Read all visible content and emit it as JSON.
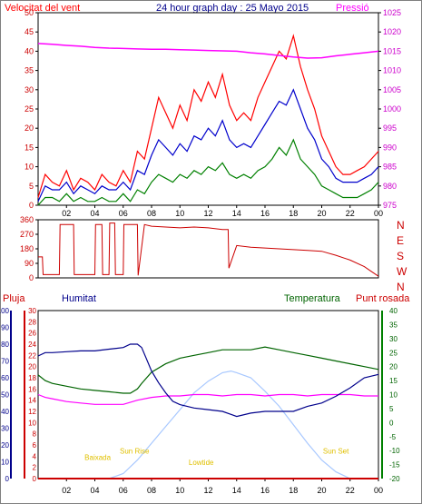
{
  "colors": {
    "wind_speed": "#ff0000",
    "wind_avg": "#0000cc",
    "wind_min": "#008000",
    "pressure": "#ff00ff",
    "direction": "#cc0000",
    "rain": "#cc0000",
    "humidity": "#00008b",
    "temperature": "#006400",
    "dew_point": "#ff00ff",
    "solar": "#a8c8ff",
    "sun_markers": "#e0c000"
  },
  "chart_data": [
    {
      "type": "line",
      "title": "24 hour graph day : 25 Mayo 2015",
      "left_label": "Velocitat del vent",
      "right_label": "Pressió",
      "x_ticks": [
        "02",
        "04",
        "06",
        "08",
        "10",
        "12",
        "14",
        "16",
        "18",
        "20",
        "22",
        "00"
      ],
      "x_range": [
        0,
        24
      ],
      "y_left_range": [
        0,
        50
      ],
      "y_left_ticks": [
        "0",
        "5",
        "10",
        "15",
        "20",
        "25",
        "30",
        "35",
        "40",
        "45",
        "50"
      ],
      "y_right_range": [
        975,
        1025
      ],
      "y_right_ticks": [
        "975",
        "980",
        "985",
        "990",
        "995",
        "1000",
        "1005",
        "1010",
        "1015",
        "1020",
        "1025"
      ],
      "series": [
        {
          "key": "wind_speed",
          "axis": "left",
          "x": [
            0,
            0.5,
            1,
            1.5,
            2,
            2.5,
            3,
            3.5,
            4,
            4.5,
            5,
            5.5,
            6,
            6.5,
            7,
            7.5,
            8,
            8.5,
            9,
            9.5,
            10,
            10.5,
            11,
            11.5,
            12,
            12.5,
            13,
            13.5,
            14,
            14.5,
            15,
            15.5,
            16,
            16.5,
            17,
            17.5,
            18,
            18.5,
            19,
            19.5,
            20,
            20.5,
            21,
            21.5,
            22,
            22.5,
            23,
            23.5,
            24
          ],
          "y": [
            2,
            8,
            6,
            5,
            9,
            4,
            7,
            6,
            4,
            8,
            6,
            5,
            9,
            6,
            14,
            12,
            20,
            28,
            24,
            20,
            26,
            22,
            30,
            27,
            32,
            28,
            34,
            26,
            22,
            24,
            22,
            28,
            32,
            36,
            40,
            38,
            44,
            36,
            30,
            25,
            18,
            14,
            10,
            8,
            8,
            9,
            10,
            12,
            14
          ]
        },
        {
          "key": "wind_avg",
          "axis": "left",
          "x": [
            0,
            0.5,
            1,
            1.5,
            2,
            2.5,
            3,
            3.5,
            4,
            4.5,
            5,
            5.5,
            6,
            6.5,
            7,
            7.5,
            8,
            8.5,
            9,
            9.5,
            10,
            10.5,
            11,
            11.5,
            12,
            12.5,
            13,
            13.5,
            14,
            14.5,
            15,
            15.5,
            16,
            16.5,
            17,
            17.5,
            18,
            18.5,
            19,
            19.5,
            20,
            20.5,
            21,
            21.5,
            22,
            22.5,
            23,
            23.5,
            24
          ],
          "y": [
            1,
            5,
            4,
            4,
            6,
            3,
            5,
            4,
            3,
            5,
            4,
            4,
            6,
            4,
            9,
            8,
            13,
            17,
            15,
            13,
            16,
            14,
            18,
            17,
            20,
            18,
            22,
            17,
            15,
            16,
            15,
            18,
            21,
            24,
            27,
            26,
            30,
            25,
            20,
            17,
            12,
            10,
            7,
            6,
            6,
            6,
            7,
            8,
            10
          ]
        },
        {
          "key": "wind_min",
          "axis": "left",
          "x": [
            0,
            0.5,
            1,
            1.5,
            2,
            2.5,
            3,
            3.5,
            4,
            4.5,
            5,
            5.5,
            6,
            6.5,
            7,
            7.5,
            8,
            8.5,
            9,
            9.5,
            10,
            10.5,
            11,
            11.5,
            12,
            12.5,
            13,
            13.5,
            14,
            14.5,
            15,
            15.5,
            16,
            16.5,
            17,
            17.5,
            18,
            18.5,
            19,
            19.5,
            20,
            20.5,
            21,
            21.5,
            22,
            22.5,
            23,
            23.5,
            24
          ],
          "y": [
            0,
            2,
            2,
            1,
            3,
            1,
            2,
            1,
            1,
            2,
            1,
            1,
            3,
            1,
            4,
            3,
            6,
            8,
            7,
            6,
            8,
            7,
            9,
            8,
            10,
            9,
            11,
            8,
            7,
            8,
            7,
            9,
            10,
            12,
            15,
            13,
            17,
            12,
            10,
            8,
            5,
            4,
            3,
            2,
            2,
            2,
            3,
            4,
            6
          ]
        },
        {
          "key": "pressure",
          "axis": "right",
          "x": [
            0,
            1,
            2,
            3,
            4,
            5,
            6,
            7,
            8,
            9,
            10,
            11,
            12,
            13,
            14,
            15,
            16,
            17,
            18,
            19,
            20,
            21,
            22,
            23,
            24
          ],
          "y": [
            1017,
            1016.8,
            1016.5,
            1016.3,
            1016,
            1015.8,
            1015.7,
            1015.6,
            1015.5,
            1015.5,
            1015.4,
            1015.3,
            1015.2,
            1015.1,
            1015,
            1014.6,
            1014.3,
            1013.9,
            1013.5,
            1013.2,
            1013.3,
            1013.8,
            1014.2,
            1014.6,
            1015
          ]
        }
      ]
    },
    {
      "type": "line",
      "left_ticks": [
        "0",
        "90",
        "180",
        "270",
        "360"
      ],
      "y_range": [
        0,
        360
      ],
      "right_labels": [
        "N",
        "W",
        "S",
        "E",
        "N"
      ],
      "x_range": [
        0,
        24
      ],
      "series": [
        {
          "key": "direction",
          "x": [
            0,
            0.3,
            0.35,
            1,
            1.5,
            1.55,
            2,
            2.5,
            2.55,
            4,
            4.05,
            4.5,
            4.55,
            5,
            5.05,
            5.4,
            5.45,
            6,
            6.05,
            7,
            7.05,
            7.5,
            8,
            9,
            10,
            11,
            12,
            13,
            13.4,
            13.45,
            14,
            15,
            16,
            17,
            18,
            19,
            20,
            21,
            22,
            23,
            23.5,
            24
          ],
          "y": [
            130,
            130,
            20,
            20,
            20,
            330,
            330,
            330,
            20,
            20,
            330,
            330,
            20,
            20,
            340,
            340,
            20,
            20,
            330,
            330,
            15,
            330,
            320,
            315,
            310,
            315,
            310,
            300,
            300,
            60,
            200,
            190,
            185,
            180,
            175,
            170,
            165,
            140,
            110,
            70,
            40,
            10
          ]
        }
      ]
    },
    {
      "type": "line",
      "left_label_rain": "Pluja",
      "left_label_humidity": "Humitat",
      "right_label_temp": "Temperatura",
      "right_label_dew": "Punt rosada",
      "x_ticks": [
        "02",
        "04",
        "06",
        "08",
        "10",
        "12",
        "14",
        "16",
        "18",
        "20",
        "22",
        "00"
      ],
      "x_range": [
        0,
        24
      ],
      "rain_ticks": [
        "0",
        "2",
        "4",
        "6",
        "8",
        "10",
        "12",
        "14",
        "16",
        "18",
        "20",
        "22",
        "24",
        "26",
        "28",
        "30"
      ],
      "rain_range": [
        0,
        30
      ],
      "humidity_ticks": [
        "0",
        "10",
        "20",
        "30",
        "40",
        "50",
        "60",
        "70",
        "80",
        "90",
        "100"
      ],
      "humidity_range": [
        0,
        100
      ],
      "temp_ticks": [
        "-20",
        "-15",
        "-10",
        "-5",
        "0",
        "5",
        "10",
        "15",
        "20",
        "25",
        "30",
        "35",
        "40"
      ],
      "temp_range": [
        -20,
        40
      ],
      "annotations": [
        {
          "label": "Baixada",
          "x": 4.2,
          "y_pct": 0.11
        },
        {
          "label": "Sun Rise",
          "x": 6.8,
          "y_pct": 0.15
        },
        {
          "label": "Lowtide",
          "x": 11.5,
          "y_pct": 0.08
        },
        {
          "label": "Sun Set",
          "x": 21,
          "y_pct": 0.15
        }
      ],
      "series": [
        {
          "key": "humidity",
          "axis": "humidity",
          "x": [
            0,
            0.5,
            1,
            2,
            3,
            4,
            5,
            6,
            6.5,
            7,
            7.3,
            7.6,
            8,
            8.5,
            9,
            9.5,
            10,
            11,
            12,
            13,
            14,
            15,
            16,
            17,
            18,
            19,
            20,
            21,
            22,
            23,
            24
          ],
          "y": [
            73,
            75,
            75,
            75.5,
            76,
            76,
            77,
            78,
            80,
            80,
            78,
            72,
            64,
            57,
            51,
            46,
            44,
            42,
            41,
            40,
            37,
            39,
            40,
            40,
            40,
            43,
            45,
            49,
            54,
            60,
            62
          ]
        },
        {
          "key": "temperature",
          "axis": "temp",
          "x": [
            0,
            0.5,
            1,
            2,
            3,
            4,
            5,
            6,
            6.5,
            7,
            7.3,
            8,
            9,
            10,
            11,
            12,
            13,
            14,
            15,
            16,
            17,
            18,
            19,
            20,
            21,
            22,
            23,
            24
          ],
          "y": [
            17,
            15,
            14,
            13,
            12,
            11.5,
            11,
            10.5,
            10.5,
            12,
            14,
            18,
            21,
            23,
            24,
            25,
            26,
            26,
            26,
            27,
            26,
            25,
            24,
            23,
            22,
            21,
            20,
            19
          ]
        },
        {
          "key": "dew_point",
          "axis": "temp",
          "x": [
            0,
            0.5,
            1,
            2,
            3,
            4,
            5,
            6,
            7,
            8,
            9,
            10,
            11,
            12,
            13,
            14,
            15,
            16,
            17,
            18,
            19,
            20,
            21,
            22,
            23,
            24
          ],
          "y": [
            10,
            9,
            8.5,
            7.5,
            7,
            6.5,
            6.5,
            6.5,
            8,
            9,
            9.5,
            9.5,
            10,
            10,
            9.5,
            10,
            10,
            9.5,
            10,
            10,
            9.5,
            10,
            10,
            10,
            9.5,
            9.5
          ]
        },
        {
          "key": "solar",
          "axis": "humidity",
          "x": [
            5,
            6,
            7,
            8,
            9,
            10,
            11,
            12,
            13,
            13.6,
            14,
            15,
            16,
            17,
            18,
            19,
            20,
            21,
            22
          ],
          "y": [
            0,
            3,
            11,
            21,
            31,
            41,
            51,
            58,
            63,
            64,
            63,
            60,
            52,
            43,
            32,
            21,
            11,
            4,
            0
          ]
        },
        {
          "key": "rain",
          "axis": "rain",
          "x": [
            0,
            24
          ],
          "y": [
            0,
            0
          ]
        }
      ]
    }
  ]
}
